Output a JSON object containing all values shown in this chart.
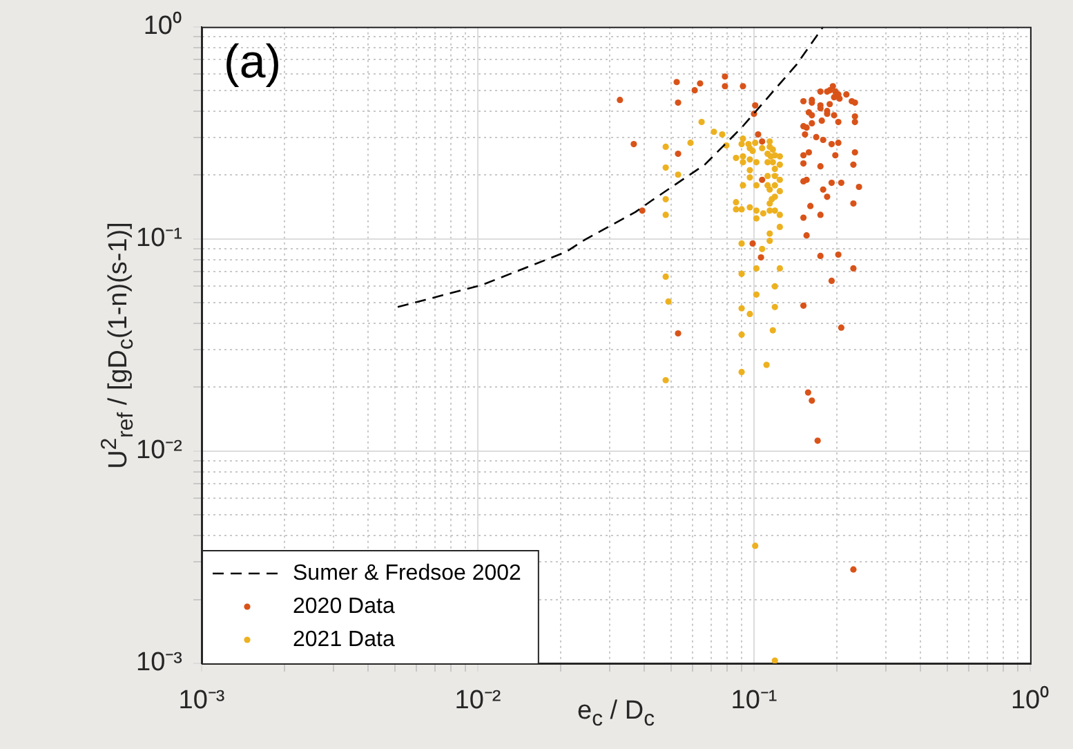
{
  "chart_data": {
    "type": "scatter",
    "xlabel": "e$_{c}$ / D$_{c}$",
    "ylabel": "U$^{2}$$_{ref}$ / [gD$_{c}$(1-n)(s-1)]",
    "annotations": [
      "(a)"
    ],
    "log": "xy",
    "grid": true,
    "legend": "bottom left",
    "marker": "circle",
    "xlim": [
      0.001,
      1
    ],
    "ylim": [
      0.001,
      1
    ],
    "xticks": [
      {
        "value": 0.001,
        "label": "10⁻³"
      },
      {
        "value": 0.002,
        "label": null
      },
      {
        "value": 0.003,
        "label": null
      },
      {
        "value": 0.004,
        "label": null
      },
      {
        "value": 0.005,
        "label": null
      },
      {
        "value": 0.006,
        "label": null
      },
      {
        "value": 0.007,
        "label": null
      },
      {
        "value": 0.008,
        "label": null
      },
      {
        "value": 0.009,
        "label": null
      },
      {
        "value": 0.01,
        "label": "10⁻²"
      },
      {
        "value": 0.02,
        "label": null
      },
      {
        "value": 0.03,
        "label": null
      },
      {
        "value": 0.04,
        "label": null
      },
      {
        "value": 0.05,
        "label": null
      },
      {
        "value": 0.06,
        "label": null
      },
      {
        "value": 0.07,
        "label": null
      },
      {
        "value": 0.08,
        "label": null
      },
      {
        "value": 0.09,
        "label": null
      },
      {
        "value": 0.1,
        "label": "10⁻¹"
      },
      {
        "value": 0.2,
        "label": null
      },
      {
        "value": 0.3,
        "label": null
      },
      {
        "value": 0.4,
        "label": null
      },
      {
        "value": 0.5,
        "label": null
      },
      {
        "value": 0.6,
        "label": null
      },
      {
        "value": 0.7,
        "label": null
      },
      {
        "value": 0.8,
        "label": null
      },
      {
        "value": 0.9,
        "label": null
      },
      {
        "value": 1,
        "label": "10⁰"
      }
    ],
    "yticks": [
      {
        "value": 0.001,
        "label": "10⁻³"
      },
      {
        "value": 0.002,
        "label": null
      },
      {
        "value": 0.003,
        "label": null
      },
      {
        "value": 0.004,
        "label": null
      },
      {
        "value": 0.005,
        "label": null
      },
      {
        "value": 0.006,
        "label": null
      },
      {
        "value": 0.007,
        "label": null
      },
      {
        "value": 0.008,
        "label": null
      },
      {
        "value": 0.009,
        "label": null
      },
      {
        "value": 0.01,
        "label": "10⁻²"
      },
      {
        "value": 0.02,
        "label": null
      },
      {
        "value": 0.03,
        "label": null
      },
      {
        "value": 0.04,
        "label": null
      },
      {
        "value": 0.05,
        "label": null
      },
      {
        "value": 0.06,
        "label": null
      },
      {
        "value": 0.07,
        "label": null
      },
      {
        "value": 0.08,
        "label": null
      },
      {
        "value": 0.09,
        "label": null
      },
      {
        "value": 0.1,
        "label": "10⁻¹"
      },
      {
        "value": 0.2,
        "label": null
      },
      {
        "value": 0.3,
        "label": null
      },
      {
        "value": 0.4,
        "label": null
      },
      {
        "value": 0.5,
        "label": null
      },
      {
        "value": 0.6,
        "label": null
      },
      {
        "value": 0.7,
        "label": null
      },
      {
        "value": 0.8,
        "label": null
      },
      {
        "value": 0.9,
        "label": null
      },
      {
        "value": 1,
        "label": "10⁰"
      }
    ],
    "series": [
      {
        "name": "Sumer & Fredsoe 2002",
        "type": "line",
        "color": "#000000",
        "line_style": "dashed",
        "marker": "none",
        "x": [
          0.00513,
          0.01035,
          0.0209,
          0.0245,
          0.0372,
          0.0427,
          0.0663,
          0.0902,
          0.143,
          0.178
        ],
        "values": [
          0.0478,
          0.0607,
          0.087,
          0.0995,
          0.134,
          0.152,
          0.224,
          0.335,
          0.667,
          1
        ]
      },
      {
        "name": "2020 Data",
        "color": "#d95319",
        "x": [
          0.0327,
          0.0367,
          0.0525,
          0.0531,
          0.0531,
          0.0394,
          0.061,
          0.0638,
          0.0785,
          0.0785,
          0.0912,
          0.0531,
          0.101,
          0.1,
          0.1035,
          0.107,
          0.107,
          0.0989,
          0.106,
          0.151,
          0.207,
          0.157,
          0.162,
          0.17,
          0.151,
          0.155,
          0.16,
          0.174,
          0.184,
          0.178,
          0.191,
          0.207,
          0.229,
          0.24,
          0.151,
          0.155,
          0.174,
          0.151,
          0.151,
          0.158,
          0.197,
          0.202,
          0.191,
          0.178,
          0.168,
          0.153,
          0.151,
          0.155,
          0.162,
          0.176,
          0.151,
          0.162,
          0.162,
          0.174,
          0.174,
          0.158,
          0.162,
          0.184,
          0.184,
          0.195,
          0.202,
          0.174,
          0.184,
          0.188,
          0.193,
          0.197,
          0.202,
          0.195,
          0.204,
          0.216,
          0.188,
          0.226,
          0.232,
          0.232,
          0.232,
          0.232,
          0.229,
          0.202,
          0.174,
          0.191,
          0.229,
          0.229
        ],
        "values": [
          0.452,
          0.28,
          0.549,
          0.439,
          0.252,
          0.136,
          0.502,
          0.541,
          0.583,
          0.525,
          0.525,
          0.0359,
          0.426,
          0.389,
          0.311,
          0.288,
          0.19,
          0.0952,
          0.0819,
          0.0485,
          0.0382,
          0.0189,
          0.0173,
          0.0112,
          0.126,
          0.104,
          0.143,
          0.13,
          0.158,
          0.171,
          0.184,
          0.184,
          0.147,
          0.176,
          0.187,
          0.19,
          0.22,
          0.227,
          0.248,
          0.256,
          0.248,
          0.284,
          0.28,
          0.293,
          0.302,
          0.311,
          0.34,
          0.335,
          0.351,
          0.361,
          0.446,
          0.452,
          0.439,
          0.426,
          0.413,
          0.395,
          0.383,
          0.401,
          0.389,
          0.383,
          0.356,
          0.495,
          0.495,
          0.502,
          0.525,
          0.495,
          0.48,
          0.466,
          0.459,
          0.48,
          0.432,
          0.446,
          0.439,
          0.378,
          0.356,
          0.256,
          0.224,
          0.0844,
          0.0832,
          0.0635,
          0.0727,
          0.00277
        ]
      },
      {
        "name": "2021 Data",
        "color": "#edb120",
        "x": [
          0.0479,
          0.0589,
          0.0646,
          0.0716,
          0.0767,
          0.0794,
          0.0479,
          0.0531,
          0.0479,
          0.0479,
          0.0479,
          0.049,
          0.0479,
          0.0861,
          0.0861,
          0.0861,
          0.0902,
          0.0902,
          0.0902,
          0.0902,
          0.0902,
          0.0902,
          0.0912,
          0.0902,
          0.0912,
          0.0912,
          0.0912,
          0.0955,
          0.0966,
          0.0989,
          0.0966,
          0.102,
          0.0966,
          0.0966,
          0.102,
          0.101,
          0.107,
          0.114,
          0.114,
          0.117,
          0.112,
          0.115,
          0.119,
          0.124,
          0.112,
          0.117,
          0.124,
          0.119,
          0.112,
          0.119,
          0.124,
          0.112,
          0.119,
          0.114,
          0.124,
          0.119,
          0.116,
          0.114,
          0.0966,
          0.102,
          0.102,
          0.108,
          0.114,
          0.119,
          0.124,
          0.124,
          0.114,
          0.114,
          0.107,
          0.102,
          0.124,
          0.119,
          0.102,
          0.0966,
          0.119,
          0.117,
          0.111,
          0.101,
          0.119
        ],
        "values": [
          0.272,
          0.284,
          0.356,
          0.32,
          0.311,
          0.276,
          0.217,
          0.201,
          0.154,
          0.13,
          0.0664,
          0.0507,
          0.0216,
          0.241,
          0.149,
          0.138,
          0.138,
          0.0952,
          0.0685,
          0.0471,
          0.0354,
          0.0236,
          0.297,
          0.28,
          0.245,
          0.23,
          0.179,
          0.28,
          0.268,
          0.26,
          0.237,
          0.23,
          0.211,
          0.195,
          0.179,
          0.284,
          0.268,
          0.288,
          0.272,
          0.264,
          0.252,
          0.245,
          0.248,
          0.245,
          0.23,
          0.23,
          0.224,
          0.214,
          0.198,
          0.198,
          0.19,
          0.179,
          0.179,
          0.171,
          0.168,
          0.158,
          0.154,
          0.147,
          0.141,
          0.136,
          0.125,
          0.132,
          0.136,
          0.136,
          0.13,
          0.114,
          0.106,
          0.098,
          0.0897,
          0.0727,
          0.0727,
          0.0598,
          0.0547,
          0.0443,
          0.0478,
          0.0371,
          0.0255,
          0.00358,
          0.00103
        ]
      }
    ]
  }
}
